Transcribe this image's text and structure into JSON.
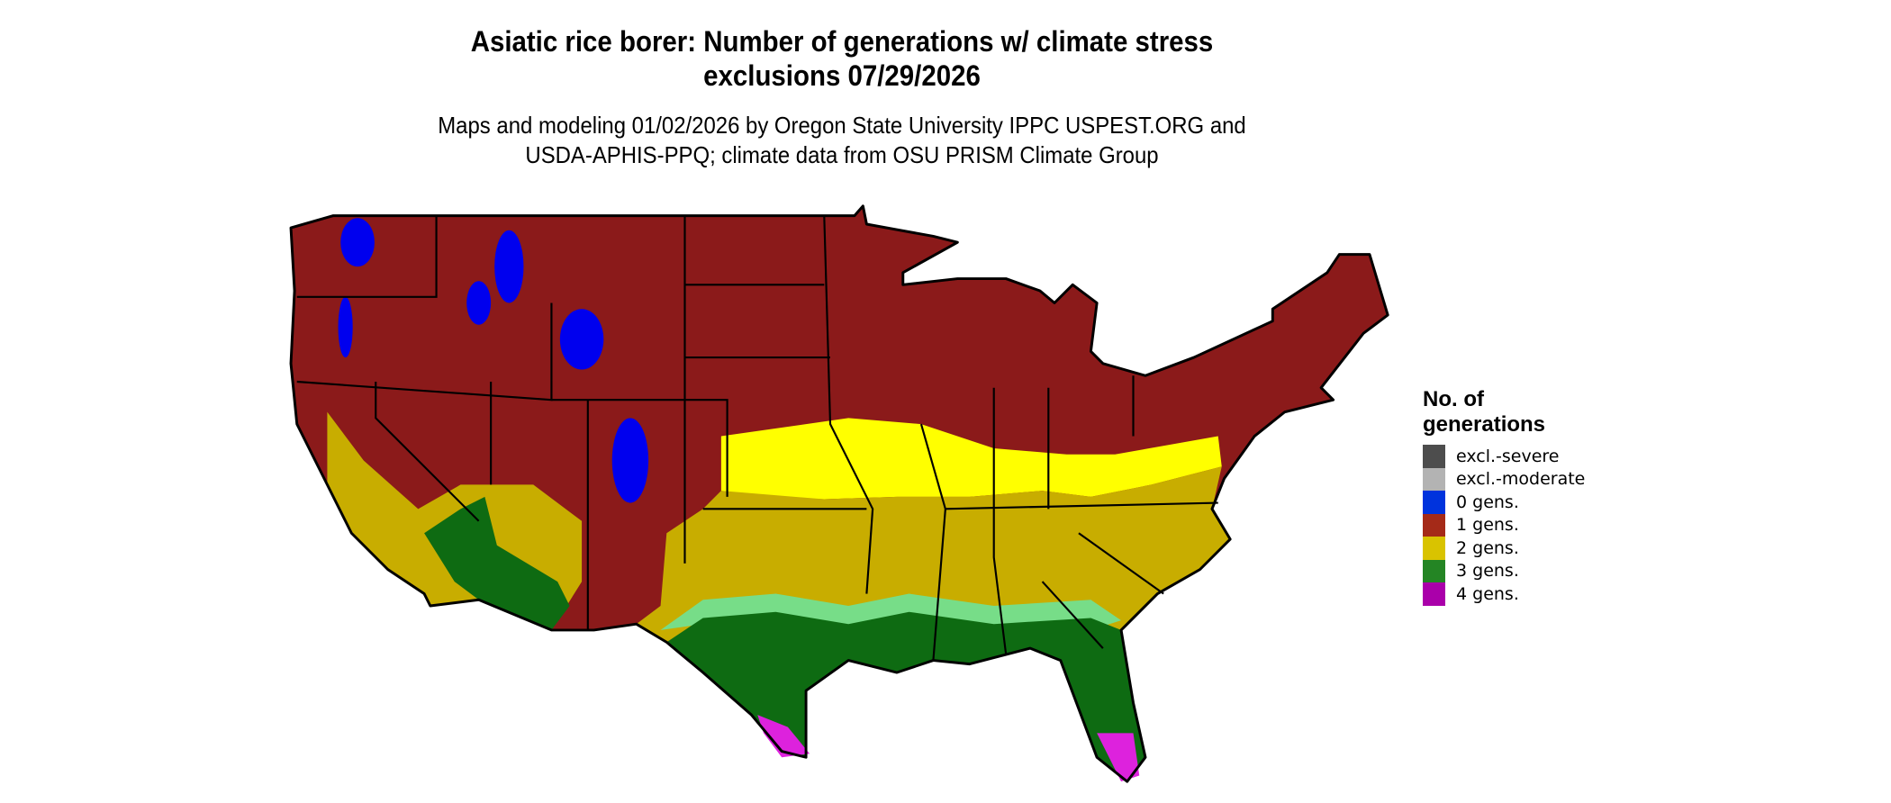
{
  "title_line1": "Asiatic rice borer: Number of generations w/ climate stress",
  "title_line2": "exclusions 07/29/2026",
  "subtitle_line1": "Maps and modeling 01/02/2026 by Oregon State University IPPC USPEST.ORG and",
  "subtitle_line2": "USDA-APHIS-PPQ; climate data from OSU PRISM Climate Group",
  "legend": {
    "title_line1": "No. of",
    "title_line2": "generations",
    "items": [
      {
        "label": "excl.-severe",
        "color": "#4d4d4d"
      },
      {
        "label": "excl.-moderate",
        "color": "#b3b3b3"
      },
      {
        "label": "0 gens.",
        "color": "#0033dd"
      },
      {
        "label": "1 gens.",
        "color": "#a52a18"
      },
      {
        "label": "2 gens.",
        "color": "#d9c300"
      },
      {
        "label": "3 gens.",
        "color": "#248524"
      },
      {
        "label": "4 gens.",
        "color": "#aa00aa"
      }
    ]
  },
  "map_colors": {
    "one_gen": "#8b1a1a",
    "two_gen": "#c8ad00",
    "two_gen_north": "#ffff00",
    "three_gen": "#0e6b12",
    "three_gen_light": "#77dd88",
    "four_gen": "#dd22dd",
    "zero_gen": "#0000ee",
    "border": "#000000"
  }
}
